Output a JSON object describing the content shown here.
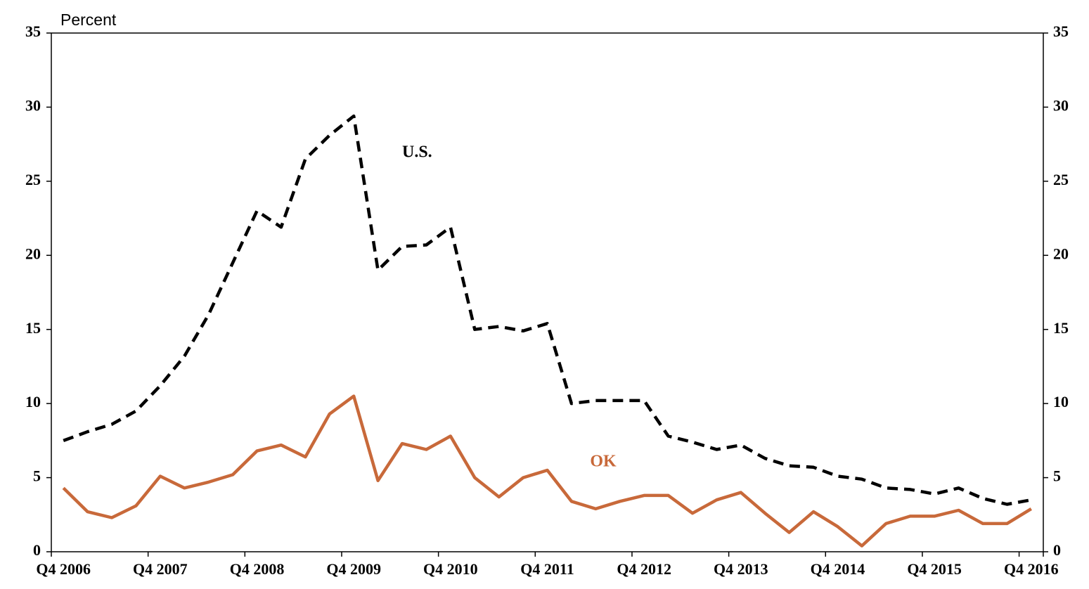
{
  "chart_data": {
    "type": "line",
    "y_label": "Percent",
    "categories": [
      "Q4 2006",
      null,
      null,
      null,
      "Q4 2007",
      null,
      null,
      null,
      "Q4 2008",
      null,
      null,
      null,
      "Q4 2009",
      null,
      null,
      null,
      "Q4 2010",
      null,
      null,
      null,
      "Q4 2011",
      null,
      null,
      null,
      "Q4 2012",
      null,
      null,
      null,
      "Q4 2013",
      null,
      null,
      null,
      "Q4 2014",
      null,
      null,
      null,
      "Q4 2015",
      null,
      null,
      null,
      "Q4 2016"
    ],
    "series": [
      {
        "name": "U.S.",
        "color": "#000000",
        "dashed": true,
        "values": [
          7.5,
          8.1,
          8.6,
          9.5,
          11.2,
          13.2,
          16.0,
          19.5,
          23.0,
          21.9,
          26.5,
          28.1,
          29.4,
          19.0,
          20.6,
          20.7,
          21.9,
          15.0,
          15.2,
          14.9,
          15.4,
          10.0,
          10.2,
          10.2,
          10.2,
          7.8,
          7.4,
          6.9,
          7.2,
          6.3,
          5.8,
          5.7,
          5.1,
          4.9,
          4.3,
          4.2,
          3.9,
          4.3,
          3.6,
          3.2,
          3.5
        ]
      },
      {
        "name": "OK",
        "color": "#c8693a",
        "dashed": false,
        "values": [
          4.3,
          2.7,
          2.3,
          3.1,
          5.1,
          4.3,
          4.7,
          5.2,
          6.8,
          7.2,
          6.4,
          9.3,
          10.5,
          4.8,
          7.3,
          6.9,
          7.8,
          5.0,
          3.7,
          5.0,
          5.5,
          3.4,
          2.9,
          3.4,
          3.8,
          3.8,
          2.6,
          3.5,
          4.0,
          2.6,
          1.3,
          2.7,
          1.7,
          0.4,
          1.9,
          2.4,
          2.4,
          2.8,
          1.9,
          1.9,
          2.9
        ]
      }
    ],
    "ylim": [
      0,
      35
    ],
    "yticks": [
      0,
      5,
      10,
      15,
      20,
      25,
      30,
      35
    ],
    "grid": false
  }
}
